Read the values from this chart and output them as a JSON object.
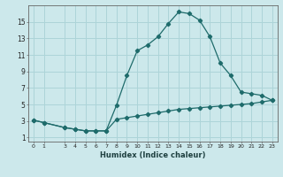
{
  "xlabel": "Humidex (Indice chaleur)",
  "bg_color": "#cce8eb",
  "grid_color": "#add4d8",
  "line_color": "#1e6b6b",
  "line1_x": [
    0,
    1,
    3,
    4,
    5,
    6,
    7,
    8,
    9,
    10,
    11,
    12,
    13,
    14,
    15,
    16,
    17,
    18,
    19,
    20,
    21,
    22,
    23
  ],
  "line1_y": [
    3.1,
    2.8,
    2.2,
    2.0,
    1.8,
    1.8,
    1.8,
    4.9,
    8.5,
    11.5,
    12.2,
    13.2,
    14.8,
    16.2,
    16.0,
    15.2,
    13.2,
    10.0,
    8.5,
    6.5,
    6.3,
    6.1,
    5.5
  ],
  "line2_x": [
    0,
    1,
    3,
    4,
    5,
    6,
    7,
    8,
    9,
    10,
    11,
    12,
    13,
    14,
    15,
    16,
    17,
    18,
    19,
    20,
    21,
    22,
    23
  ],
  "line2_y": [
    3.1,
    2.8,
    2.2,
    2.0,
    1.8,
    1.8,
    1.8,
    3.2,
    3.4,
    3.6,
    3.8,
    4.0,
    4.2,
    4.4,
    4.5,
    4.6,
    4.7,
    4.8,
    4.9,
    5.0,
    5.1,
    5.3,
    5.5
  ],
  "xlim": [
    -0.5,
    23.5
  ],
  "ylim": [
    0.5,
    17
  ],
  "yticks": [
    1,
    3,
    5,
    7,
    9,
    11,
    13,
    15
  ],
  "xticks": [
    0,
    1,
    3,
    4,
    5,
    6,
    7,
    8,
    9,
    10,
    11,
    12,
    13,
    14,
    15,
    16,
    17,
    18,
    19,
    20,
    21,
    22,
    23
  ]
}
